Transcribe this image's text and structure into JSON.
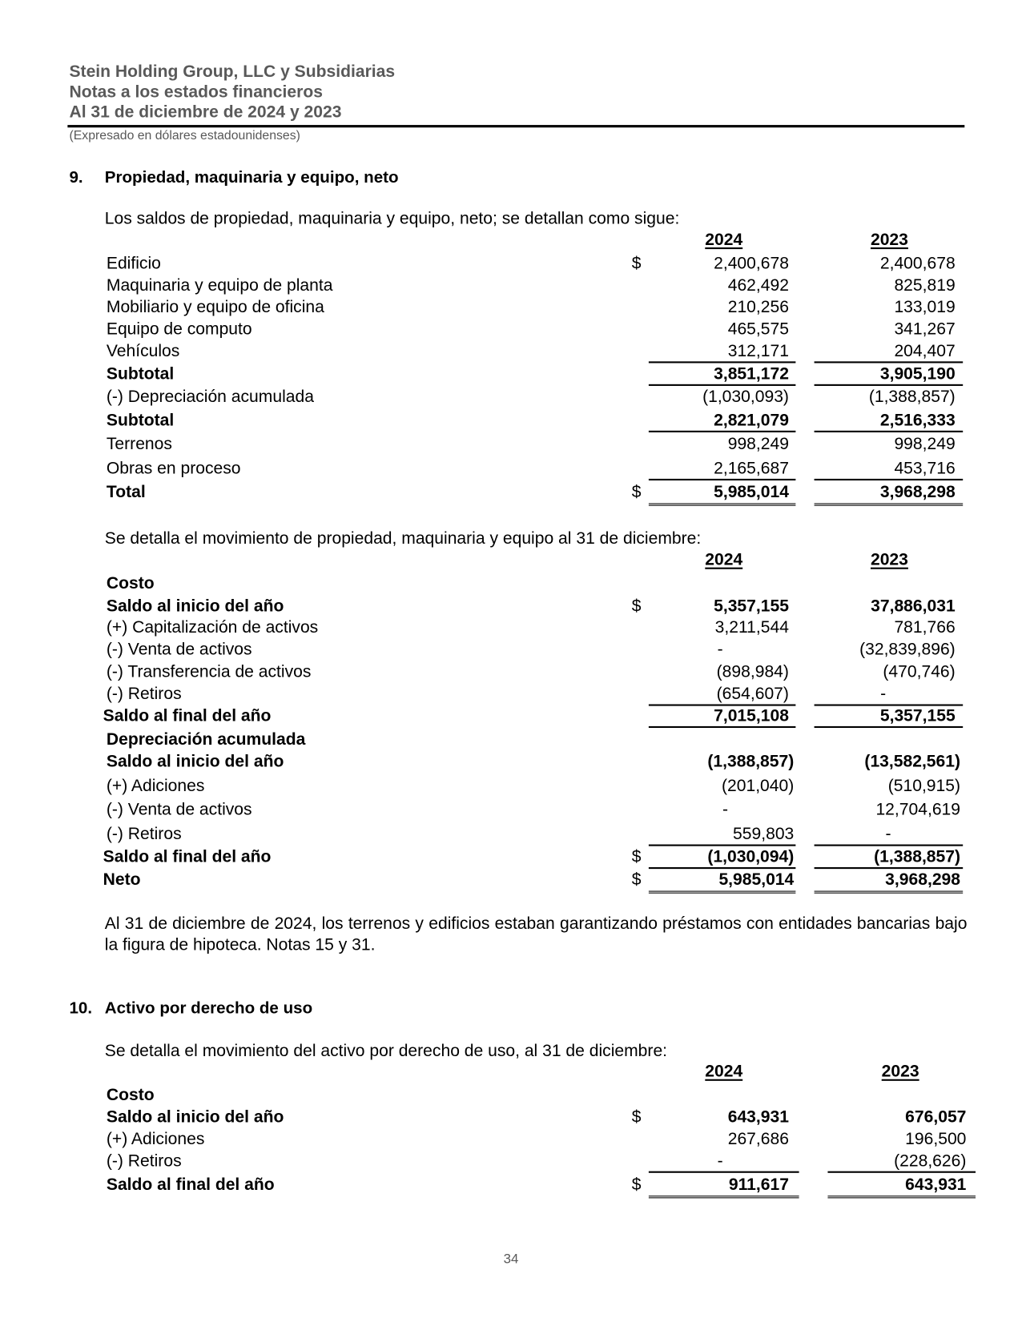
{
  "header": {
    "company": "Stein Holding Group, LLC y Subsidiarias",
    "doc_title": "Notas a los estados financieros",
    "period": "Al 31 de diciembre de 2024 y 2023",
    "currency_note": "(Expresado en dólares estadounidenses)"
  },
  "note9": {
    "number": "9.",
    "title": "Propiedad, maquinaria y equipo, neto",
    "intro1": "Los saldos de propiedad, maquinaria y equipo, neto; se detallan como sigue:",
    "intro2": "Se detalla el movimiento de propiedad, maquinaria y equipo al 31 de diciembre:",
    "paragraph": "Al 31 de diciembre de 2024, los terrenos y edificios estaban garantizando préstamos con entidades bancarias bajo la figura de hipoteca. Notas 15 y 31."
  },
  "note10": {
    "number": "10.",
    "title": "Activo por derecho de uso",
    "intro": "Se detalla el movimiento del activo por derecho de uso, al 31 de diciembre:"
  },
  "tables": [
    {
      "years": [
        "2024",
        "2023"
      ],
      "rows": [
        {
          "label": "Edificio",
          "cur": "$",
          "v1": "2,400,678",
          "v2": "2,400,678"
        },
        {
          "label": "Maquinaria y equipo de planta",
          "v1": "462,492",
          "v2": "825,819"
        },
        {
          "label": "Mobiliario y equipo de oficina",
          "v1": "210,256",
          "v2": "133,019"
        },
        {
          "label": "Equipo de computo",
          "v1": "465,575",
          "v2": "341,267"
        },
        {
          "label": "Vehículos",
          "v1": "312,171",
          "v2": "204,407"
        },
        {
          "label": "Subtotal",
          "bold": true,
          "v1": "3,851,172",
          "v2": "3,905,190"
        },
        {
          "label": "(-) Depreciación acumulada",
          "v1": "(1,030,093)",
          "v2": "(1,388,857)"
        },
        {
          "label": "Subtotal",
          "bold": true,
          "v1": "2,821,079",
          "v2": "2,516,333"
        },
        {
          "label": "Terrenos",
          "v1": "998,249",
          "v2": "998,249"
        },
        {
          "label": "Obras en proceso",
          "v1": "2,165,687",
          "v2": "453,716"
        },
        {
          "label": "Total",
          "bold": true,
          "cur": "$",
          "v1": "5,985,014",
          "v2": "3,968,298"
        }
      ]
    },
    {
      "years": [
        "2024",
        "2023"
      ],
      "rows": [
        {
          "label": "Costo",
          "bold": true
        },
        {
          "label": "Saldo al inicio del año",
          "bold": true,
          "cur": "$",
          "v1": "5,357,155",
          "v2": "37,886,031"
        },
        {
          "label": "(+) Capitalización de activos",
          "v1": "3,211,544",
          "v2": "781,766"
        },
        {
          "label": "(-) Venta de activos",
          "v1": "-",
          "v2": "(32,839,896)"
        },
        {
          "label": "(-) Transferencia de activos",
          "v1": "(898,984)",
          "v2": "(470,746)"
        },
        {
          "label": "(-) Retiros",
          "v1": "(654,607)",
          "v2": "-"
        },
        {
          "label": "Saldo al final del año",
          "bold": true,
          "v1": "7,015,108",
          "v2": "5,357,155"
        },
        {
          "label": "Depreciación acumulada",
          "bold": true
        },
        {
          "label": "Saldo al inicio del año",
          "bold": true,
          "v1": "(1,388,857)",
          "v2": "(13,582,561)"
        },
        {
          "label": "(+) Adiciones",
          "v1": "(201,040)",
          "v2": "(510,915)"
        },
        {
          "label": "(-) Venta de activos",
          "v1": "-",
          "v2": "12,704,619"
        },
        {
          "label": "(-) Retiros",
          "v1": "559,803",
          "v2": "-"
        },
        {
          "label": "Saldo al final del año",
          "bold": true,
          "cur": "$",
          "v1": "(1,030,094)",
          "v2": "(1,388,857)"
        },
        {
          "label": "Neto",
          "bold": true,
          "cur": "$",
          "v1": "5,985,014",
          "v2": "3,968,298"
        }
      ]
    },
    {
      "years": [
        "2024",
        "2023"
      ],
      "rows": [
        {
          "label": "Costo",
          "bold": true
        },
        {
          "label": "Saldo al inicio del año",
          "bold": true,
          "cur": "$",
          "v1": "643,931",
          "v2": "676,057"
        },
        {
          "label": "(+) Adiciones",
          "v1": "267,686",
          "v2": "196,500"
        },
        {
          "label": "(-) Retiros",
          "v1": "-",
          "v2": "(228,626)"
        },
        {
          "label": "Saldo al final del año",
          "bold": true,
          "cur": "$",
          "v1": "911,617",
          "v2": "643,931"
        }
      ]
    }
  ],
  "footer": {
    "page_number": "34"
  }
}
